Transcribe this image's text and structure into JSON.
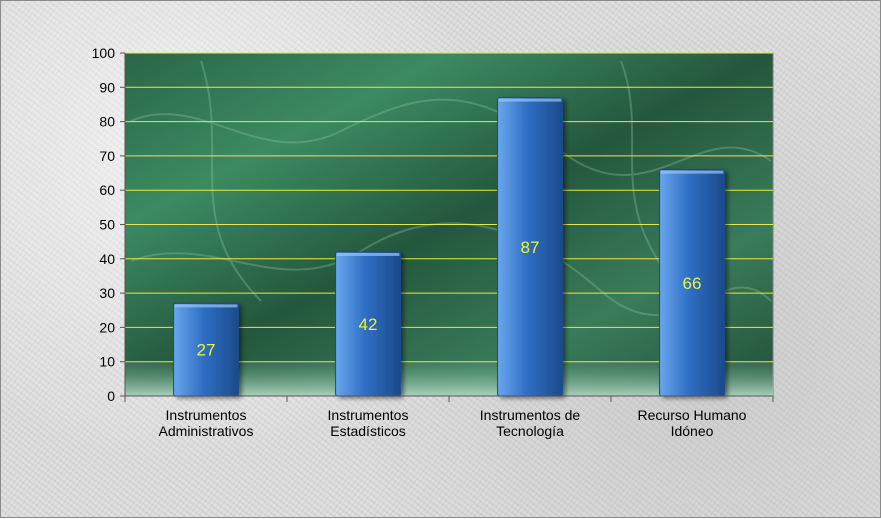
{
  "chart_data": {
    "type": "bar",
    "categories": [
      [
        "Instrumentos",
        "Administrativos"
      ],
      [
        "Instrumentos",
        "Estadísticos"
      ],
      [
        "Instrumentos de",
        "Tecnología"
      ],
      [
        "Recurso Humano",
        "Idóneo"
      ]
    ],
    "values": [
      27,
      42,
      87,
      66
    ],
    "data_labels": [
      "27",
      "42",
      "87",
      "66"
    ],
    "ylim": [
      0,
      100
    ],
    "yticks": [
      "0",
      "10",
      "20",
      "30",
      "40",
      "50",
      "60",
      "70",
      "80",
      "90",
      "100"
    ],
    "grid": true,
    "legend": "none",
    "colors": {
      "bar": "#2f6fc4",
      "bar_light": "#6aa6ee",
      "bar_dark": "#1c4a8c",
      "grid": "#e8e84a",
      "data_label": "#f2f23a",
      "plot_bg": "#2e6b4a",
      "axis_text": "#000000"
    }
  }
}
